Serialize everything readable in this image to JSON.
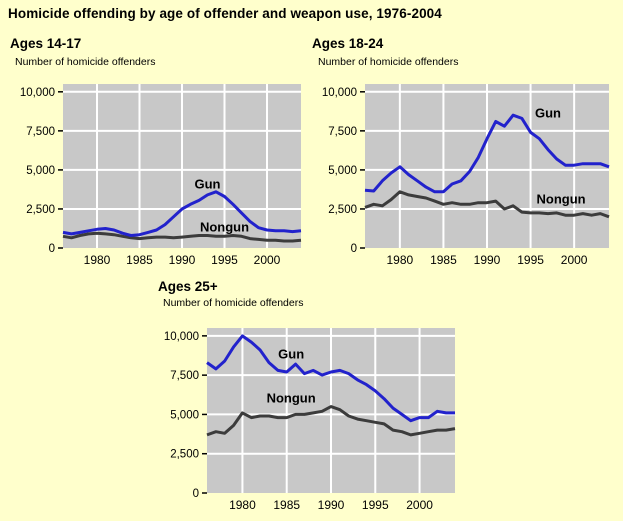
{
  "title": "Homicide offending by age of offender and weapon use, 1976-2004",
  "colors": {
    "background": "#FFFFCC",
    "plot_bg": "#C8C8C8",
    "grid": "#FFFFFF",
    "gun": "#2222CC",
    "nongun": "#3C3C3C",
    "tick": "#000000"
  },
  "chart_data": [
    {
      "type": "line",
      "title": "Ages 14-17",
      "ylabel": "Number of homicide offenders",
      "x_range": [
        1976,
        2004
      ],
      "ylim": [
        0,
        10500
      ],
      "grid": true,
      "legend_position": "inline-labels",
      "xticks": [
        1980,
        1985,
        1990,
        1995,
        2000
      ],
      "yticks": [
        0,
        2500,
        5000,
        7500,
        10000
      ],
      "ytick_labels": [
        "0",
        "2,500",
        "5,000",
        "7,500",
        "10,000"
      ],
      "x": [
        1976,
        1977,
        1978,
        1979,
        1980,
        1981,
        1982,
        1983,
        1984,
        1985,
        1986,
        1987,
        1988,
        1989,
        1990,
        1991,
        1992,
        1993,
        1994,
        1995,
        1996,
        1997,
        1998,
        1999,
        2000,
        2001,
        2002,
        2003,
        2004
      ],
      "series": [
        {
          "name": "Gun",
          "color_key": "gun",
          "values": [
            1000,
            900,
            1000,
            1100,
            1200,
            1250,
            1150,
            950,
            800,
            850,
            1000,
            1150,
            1500,
            2000,
            2500,
            2800,
            3050,
            3400,
            3600,
            3300,
            2800,
            2250,
            1700,
            1300,
            1150,
            1100,
            1100,
            1050,
            1100
          ],
          "label": {
            "text": "Gun",
            "x": 1993,
            "y": 3800
          }
        },
        {
          "name": "Nongun",
          "color_key": "nongun",
          "values": [
            750,
            650,
            800,
            900,
            950,
            900,
            850,
            750,
            650,
            600,
            650,
            700,
            700,
            650,
            700,
            750,
            800,
            800,
            750,
            750,
            800,
            750,
            600,
            550,
            500,
            500,
            450,
            450,
            500
          ],
          "label": {
            "text": "Nongun",
            "x": 1995,
            "y": 1050
          }
        }
      ]
    },
    {
      "type": "line",
      "title": "Ages 18-24",
      "ylabel": "Number of homicide offenders",
      "x_range": [
        1976,
        2004
      ],
      "ylim": [
        0,
        10500
      ],
      "grid": true,
      "legend_position": "inline-labels",
      "xticks": [
        1980,
        1985,
        1990,
        1995,
        2000
      ],
      "yticks": [
        0,
        2500,
        5000,
        7500,
        10000
      ],
      "ytick_labels": [
        "0",
        "2,500",
        "5,000",
        "7,500",
        "10,000"
      ],
      "x": [
        1976,
        1977,
        1978,
        1979,
        1980,
        1981,
        1982,
        1983,
        1984,
        1985,
        1986,
        1987,
        1988,
        1989,
        1990,
        1991,
        1992,
        1993,
        1994,
        1995,
        1996,
        1997,
        1998,
        1999,
        2000,
        2001,
        2002,
        2003,
        2004
      ],
      "series": [
        {
          "name": "Gun",
          "color_key": "gun",
          "values": [
            3700,
            3650,
            4300,
            4800,
            5200,
            4700,
            4300,
            3900,
            3600,
            3600,
            4100,
            4300,
            4900,
            5800,
            7000,
            8100,
            7800,
            8500,
            8300,
            7400,
            7000,
            6300,
            5700,
            5300,
            5300,
            5400,
            5400,
            5400,
            5200
          ],
          "label": {
            "text": "Gun",
            "x": 1997,
            "y": 8350
          }
        },
        {
          "name": "Nongun",
          "color_key": "nongun",
          "values": [
            2600,
            2800,
            2700,
            3100,
            3600,
            3400,
            3300,
            3200,
            3000,
            2800,
            2900,
            2800,
            2800,
            2900,
            2900,
            3000,
            2500,
            2700,
            2300,
            2250,
            2250,
            2200,
            2250,
            2100,
            2100,
            2200,
            2100,
            2200,
            2000
          ],
          "label": {
            "text": "Nongun",
            "x": 1998.5,
            "y": 2850
          }
        }
      ]
    },
    {
      "type": "line",
      "title": "Ages 25+",
      "ylabel": "Number of homicide offenders",
      "x_range": [
        1976,
        2004
      ],
      "ylim": [
        0,
        10500
      ],
      "grid": true,
      "legend_position": "inline-labels",
      "xticks": [
        1980,
        1985,
        1990,
        1995,
        2000
      ],
      "yticks": [
        0,
        2500,
        5000,
        7500,
        10000
      ],
      "ytick_labels": [
        "0",
        "2,500",
        "5,000",
        "7,500",
        "10,000"
      ],
      "x": [
        1976,
        1977,
        1978,
        1979,
        1980,
        1981,
        1982,
        1983,
        1984,
        1985,
        1986,
        1987,
        1988,
        1989,
        1990,
        1991,
        1992,
        1993,
        1994,
        1995,
        1996,
        1997,
        1998,
        1999,
        2000,
        2001,
        2002,
        2003,
        2004
      ],
      "series": [
        {
          "name": "Gun",
          "color_key": "gun",
          "values": [
            8300,
            7900,
            8400,
            9300,
            10000,
            9600,
            9100,
            8300,
            7800,
            7700,
            8200,
            7600,
            7800,
            7500,
            7700,
            7800,
            7600,
            7200,
            6900,
            6500,
            6000,
            5400,
            5000,
            4600,
            4800,
            4800,
            5200,
            5100,
            5100
          ],
          "label": {
            "text": "Gun",
            "x": 1985.5,
            "y": 8550
          }
        },
        {
          "name": "Nongun",
          "color_key": "nongun",
          "values": [
            3700,
            3900,
            3800,
            4300,
            5100,
            4800,
            4900,
            4900,
            4800,
            4800,
            5000,
            5000,
            5100,
            5200,
            5500,
            5300,
            4900,
            4700,
            4600,
            4500,
            4400,
            4000,
            3900,
            3700,
            3800,
            3900,
            4000,
            4000,
            4100
          ],
          "label": {
            "text": "Nongun",
            "x": 1985.5,
            "y": 5750
          }
        }
      ]
    }
  ]
}
